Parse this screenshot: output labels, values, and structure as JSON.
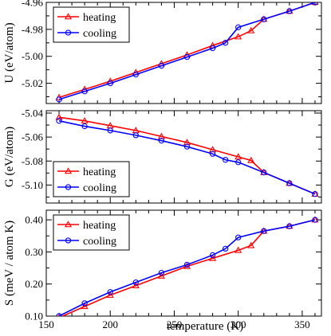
{
  "figure": {
    "xlabel": "temperature (K)",
    "xticks": [
      "150",
      "200",
      "250",
      "300",
      "350"
    ]
  },
  "colors": {
    "heating": "#ff0000",
    "cooling": "#0000ff"
  },
  "chart_data": [
    {
      "type": "line",
      "ylabel": "U (eV/atom)",
      "xlim": [
        150,
        365
      ],
      "ylim": [
        -5.035,
        -4.96
      ],
      "yticks": [
        "-4.96",
        "-4.98",
        "-5.00",
        "-5.02"
      ],
      "legend": "top-left",
      "series": [
        {
          "name": "heating",
          "marker": "triangle",
          "x": [
            160,
            180,
            200,
            220,
            240,
            260,
            280,
            300,
            310,
            320,
            340,
            360
          ],
          "y": [
            -5.0305,
            -5.0245,
            -5.0185,
            -5.012,
            -5.0055,
            -4.999,
            -4.992,
            -4.9855,
            -4.981,
            -4.9725,
            -4.9665,
            -4.96
          ]
        },
        {
          "name": "cooling",
          "marker": "circle",
          "x": [
            160,
            180,
            200,
            220,
            240,
            260,
            280,
            290,
            300,
            320,
            340,
            360
          ],
          "y": [
            -5.032,
            -5.026,
            -5.02,
            -5.0135,
            -5.007,
            -5.0005,
            -4.994,
            -4.99,
            -4.9785,
            -4.9725,
            -4.9665,
            -4.96
          ]
        }
      ]
    },
    {
      "type": "line",
      "ylabel": "G (eV/atom)",
      "xlim": [
        150,
        365
      ],
      "ylim": [
        -5.115,
        -5.038
      ],
      "yticks": [
        "-5.04",
        "-5.06",
        "-5.08",
        "-5.10"
      ],
      "legend": "bottom-left",
      "series": [
        {
          "name": "heating",
          "marker": "triangle",
          "x": [
            160,
            180,
            200,
            220,
            240,
            260,
            280,
            300,
            310,
            320,
            340,
            360
          ],
          "y": [
            -5.0435,
            -5.0465,
            -5.0505,
            -5.0545,
            -5.0595,
            -5.0645,
            -5.0705,
            -5.0765,
            -5.0795,
            -5.0895,
            -5.0985,
            -5.1075
          ]
        },
        {
          "name": "cooling",
          "marker": "circle",
          "x": [
            160,
            180,
            200,
            220,
            240,
            260,
            280,
            290,
            300,
            320,
            340,
            360
          ],
          "y": [
            -5.0465,
            -5.051,
            -5.0545,
            -5.0585,
            -5.063,
            -5.068,
            -5.074,
            -5.079,
            -5.081,
            -5.0895,
            -5.0985,
            -5.1075
          ]
        }
      ]
    },
    {
      "type": "line",
      "ylabel": "S (meV / atom K)",
      "xlim": [
        150,
        365
      ],
      "ylim": [
        0.1,
        0.43
      ],
      "yticks": [
        "0.40",
        "0.30",
        "0.20",
        "0.10"
      ],
      "legend": "top-left",
      "series": [
        {
          "name": "heating",
          "marker": "triangle",
          "x": [
            160,
            180,
            200,
            220,
            240,
            260,
            280,
            300,
            310,
            320,
            340,
            360
          ],
          "y": [
            0.095,
            0.13,
            0.165,
            0.195,
            0.225,
            0.255,
            0.28,
            0.305,
            0.32,
            0.365,
            0.38,
            0.4
          ]
        },
        {
          "name": "cooling",
          "marker": "circle",
          "x": [
            160,
            180,
            200,
            220,
            240,
            260,
            280,
            290,
            300,
            320,
            340,
            360
          ],
          "y": [
            0.1,
            0.14,
            0.175,
            0.205,
            0.235,
            0.26,
            0.29,
            0.31,
            0.345,
            0.365,
            0.38,
            0.4
          ]
        }
      ]
    }
  ]
}
